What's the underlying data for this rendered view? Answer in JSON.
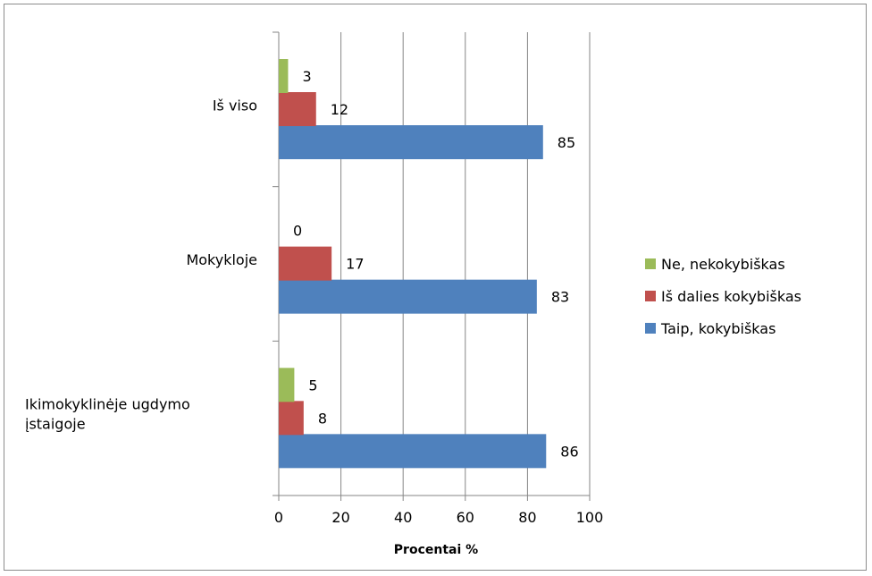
{
  "chart_data": {
    "type": "bar",
    "orientation": "horizontal",
    "categories": [
      "Iš viso",
      "Mokykloje",
      "Ikimokyklinėje ugdymo įstaigoje"
    ],
    "category_lines": [
      [
        "Iš viso"
      ],
      [
        "Mokykloje"
      ],
      [
        "Ikimokyklinėje ugdymo",
        "įstaigoje"
      ]
    ],
    "series": [
      {
        "name": "Taip, kokybiškas",
        "values": [
          85,
          83,
          86
        ],
        "labels": [
          "85",
          "83",
          "86"
        ],
        "color": "#4f81bd"
      },
      {
        "name": "Iš dalies kokybiškas",
        "values": [
          12,
          17,
          8
        ],
        "labels": [
          "12",
          "17",
          "8"
        ],
        "color": "#c0504d"
      },
      {
        "name": "Ne, nekokybiškas",
        "values": [
          3,
          0,
          5
        ],
        "labels": [
          "3",
          "0",
          "5"
        ],
        "color": "#9bbb59"
      }
    ],
    "legend_order": [
      2,
      1,
      0
    ],
    "xlabel": "Procentai %",
    "xlim": [
      0,
      100
    ],
    "xticks": [
      0,
      20,
      40,
      60,
      80,
      100
    ],
    "xtick_labels": [
      "0",
      "20",
      "40",
      "60",
      "80",
      "100"
    ],
    "grid": true,
    "legend_position": "right"
  }
}
